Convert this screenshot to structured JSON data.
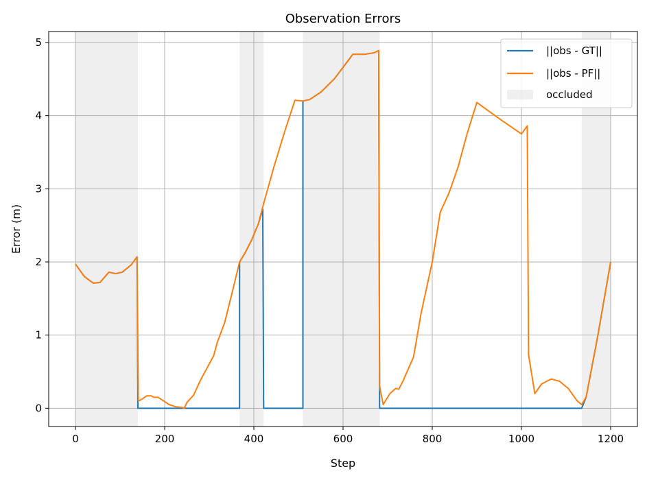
{
  "chart_data": {
    "type": "line",
    "title": "Observation Errors",
    "xlabel": "Step",
    "ylabel": "Error (m)",
    "xlim": [
      -60,
      1260
    ],
    "ylim": [
      -0.25,
      5.15
    ],
    "xticks": [
      0,
      200,
      400,
      600,
      800,
      1000,
      1200
    ],
    "yticks": [
      0,
      1,
      2,
      3,
      4,
      5
    ],
    "grid": true,
    "legend_position": "upper right",
    "colors": {
      "gt": "#1f77b4",
      "pf": "#ff7f0e",
      "occluded": "#d9d9d9",
      "grid": "#b0b0b0"
    },
    "occluded_label": "occluded",
    "occluded_intervals": [
      [
        0,
        140
      ],
      [
        368,
        422
      ],
      [
        510,
        682
      ],
      [
        1135,
        1200
      ]
    ],
    "series": [
      {
        "name": "||obs - GT||",
        "color_key": "gt",
        "points": [
          [
            0,
            1.97
          ],
          [
            20,
            1.8
          ],
          [
            40,
            1.71
          ],
          [
            55,
            1.72
          ],
          [
            75,
            1.86
          ],
          [
            90,
            1.84
          ],
          [
            105,
            1.86
          ],
          [
            125,
            1.96
          ],
          [
            138,
            2.07
          ],
          [
            140,
            0.0
          ],
          [
            368,
            0.0
          ],
          [
            368,
            2.0
          ],
          [
            380,
            2.12
          ],
          [
            395,
            2.3
          ],
          [
            410,
            2.52
          ],
          [
            420,
            2.72
          ],
          [
            422,
            0.0
          ],
          [
            510,
            0.0
          ],
          [
            510,
            4.2
          ],
          [
            525,
            4.22
          ],
          [
            550,
            4.32
          ],
          [
            580,
            4.5
          ],
          [
            600,
            4.66
          ],
          [
            622,
            4.84
          ],
          [
            650,
            4.84
          ],
          [
            670,
            4.86
          ],
          [
            680,
            4.89
          ],
          [
            682,
            0.0
          ],
          [
            1135,
            0.0
          ],
          [
            1145,
            0.15
          ],
          [
            1170,
            0.95
          ],
          [
            1200,
            2.0
          ]
        ]
      },
      {
        "name": "||obs - PF||",
        "color_key": "pf",
        "points": [
          [
            0,
            1.97
          ],
          [
            20,
            1.8
          ],
          [
            40,
            1.71
          ],
          [
            55,
            1.72
          ],
          [
            75,
            1.86
          ],
          [
            90,
            1.84
          ],
          [
            105,
            1.86
          ],
          [
            125,
            1.96
          ],
          [
            138,
            2.07
          ],
          [
            141,
            0.1
          ],
          [
            148,
            0.12
          ],
          [
            160,
            0.17
          ],
          [
            170,
            0.17
          ],
          [
            176,
            0.15
          ],
          [
            185,
            0.15
          ],
          [
            195,
            0.11
          ],
          [
            210,
            0.05
          ],
          [
            225,
            0.02
          ],
          [
            240,
            0.01
          ],
          [
            244,
            0.0
          ],
          [
            250,
            0.08
          ],
          [
            265,
            0.18
          ],
          [
            280,
            0.38
          ],
          [
            295,
            0.55
          ],
          [
            310,
            0.72
          ],
          [
            318,
            0.9
          ],
          [
            335,
            1.18
          ],
          [
            350,
            1.55
          ],
          [
            368,
            2.0
          ],
          [
            380,
            2.12
          ],
          [
            395,
            2.3
          ],
          [
            410,
            2.52
          ],
          [
            422,
            2.8
          ],
          [
            445,
            3.3
          ],
          [
            470,
            3.8
          ],
          [
            492,
            4.21
          ],
          [
            510,
            4.2
          ],
          [
            525,
            4.22
          ],
          [
            550,
            4.32
          ],
          [
            580,
            4.5
          ],
          [
            600,
            4.66
          ],
          [
            622,
            4.84
          ],
          [
            650,
            4.84
          ],
          [
            670,
            4.86
          ],
          [
            680,
            4.89
          ],
          [
            682,
            0.3
          ],
          [
            690,
            0.05
          ],
          [
            705,
            0.2
          ],
          [
            718,
            0.27
          ],
          [
            725,
            0.26
          ],
          [
            735,
            0.38
          ],
          [
            745,
            0.52
          ],
          [
            758,
            0.7
          ],
          [
            775,
            1.3
          ],
          [
            800,
            2.0
          ],
          [
            818,
            2.68
          ],
          [
            838,
            2.95
          ],
          [
            858,
            3.3
          ],
          [
            878,
            3.75
          ],
          [
            900,
            4.18
          ],
          [
            950,
            3.96
          ],
          [
            1000,
            3.75
          ],
          [
            1013,
            3.86
          ],
          [
            1016,
            0.73
          ],
          [
            1030,
            0.2
          ],
          [
            1045,
            0.33
          ],
          [
            1060,
            0.38
          ],
          [
            1068,
            0.4
          ],
          [
            1078,
            0.38
          ],
          [
            1085,
            0.37
          ],
          [
            1105,
            0.27
          ],
          [
            1125,
            0.1
          ],
          [
            1135,
            0.05
          ],
          [
            1145,
            0.15
          ],
          [
            1170,
            0.95
          ],
          [
            1200,
            2.0
          ]
        ]
      }
    ]
  }
}
